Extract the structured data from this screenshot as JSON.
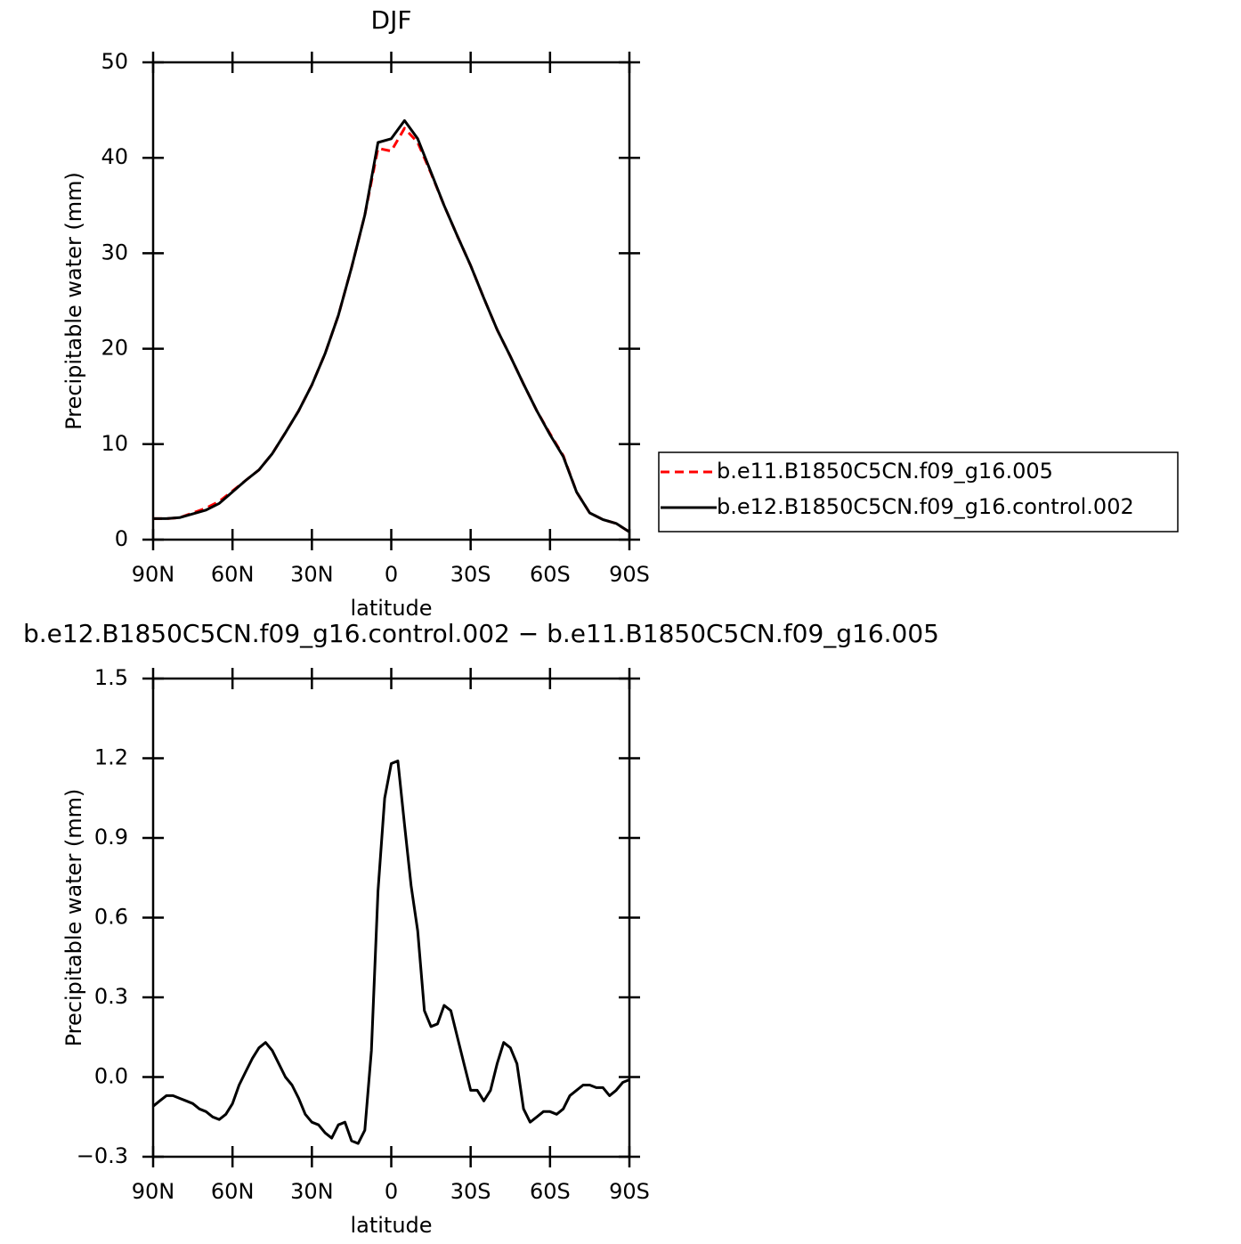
{
  "chart_data": [
    {
      "type": "line",
      "title": "DJF",
      "xlabel": "latitude",
      "ylabel": "Precipitable water (mm)",
      "x": [
        90,
        85,
        80,
        75,
        70,
        65,
        60,
        55,
        50,
        45,
        40,
        35,
        30,
        25,
        20,
        15,
        10,
        5,
        0,
        -5,
        -10,
        -15,
        -20,
        -25,
        -30,
        -35,
        -40,
        -45,
        -50,
        -55,
        -60,
        -65,
        -70,
        -75,
        -80,
        -85,
        -90
      ],
      "series": [
        {
          "name": "b.e11.B1850C5CN.f09_g16.005",
          "color": "#ff0000",
          "style": "dashed",
          "values": [
            2.2,
            2.2,
            2.3,
            2.8,
            3.3,
            4.0,
            5.1,
            6.2,
            7.3,
            9.0,
            11.2,
            13.5,
            16.2,
            19.5,
            23.5,
            28.5,
            34.0,
            41.0,
            40.7,
            43.1,
            41.6,
            38.4,
            35.0,
            31.8,
            28.7,
            25.3,
            22.0,
            19.2,
            16.3,
            13.5,
            11.1,
            8.8,
            5.0,
            2.8,
            2.1,
            1.7,
            0.8
          ]
        },
        {
          "name": "b.e12.B1850C5CN.f09_g16.control.002",
          "color": "#000000",
          "style": "solid",
          "values": [
            2.2,
            2.2,
            2.3,
            2.7,
            3.1,
            3.8,
            5.0,
            6.2,
            7.3,
            9.0,
            11.2,
            13.5,
            16.2,
            19.5,
            23.5,
            28.5,
            34.0,
            41.6,
            42.0,
            43.9,
            42.0,
            38.5,
            35.0,
            31.8,
            28.7,
            25.3,
            22.0,
            19.2,
            16.3,
            13.5,
            11.0,
            8.7,
            5.0,
            2.8,
            2.1,
            1.7,
            0.8
          ]
        }
      ],
      "xlim": [
        90,
        -90
      ],
      "xticks": [
        {
          "value": 90,
          "label": "90N"
        },
        {
          "value": 60,
          "label": "60N"
        },
        {
          "value": 30,
          "label": "30N"
        },
        0,
        {
          "value": -30,
          "label": "30S"
        },
        {
          "value": -60,
          "label": "60S"
        },
        {
          "value": -90,
          "label": "90S"
        }
      ],
      "ylim": [
        0,
        50
      ],
      "yticks": [
        0,
        10,
        20,
        30,
        40,
        50
      ],
      "legend": "right"
    },
    {
      "type": "line",
      "title": "b.e12.B1850C5CN.f09_g16.control.002 − b.e11.B1850C5CN.f09_g16.005",
      "xlabel": "latitude",
      "ylabel": "Precipitable water (mm)",
      "x": [
        90,
        87.5,
        85,
        82.5,
        80,
        77.5,
        75,
        72.5,
        70,
        67.5,
        65,
        62.5,
        60,
        57.5,
        55,
        52.5,
        50,
        47.5,
        45,
        42.5,
        40,
        37.5,
        35,
        32.5,
        30,
        27.5,
        25,
        22.5,
        20,
        17.5,
        15,
        12.5,
        10,
        7.5,
        5,
        2.5,
        0,
        -2.5,
        -5,
        -7.5,
        -10,
        -12.5,
        -15,
        -17.5,
        -20,
        -22.5,
        -25,
        -27.5,
        -30,
        -32.5,
        -35,
        -37.5,
        -40,
        -42.5,
        -45,
        -47.5,
        -50,
        -52.5,
        -55,
        -57.5,
        -60,
        -62.5,
        -65,
        -67.5,
        -70,
        -72.5,
        -75,
        -77.5,
        -80,
        -82.5,
        -85,
        -87.5,
        -90
      ],
      "series": [
        {
          "color": "#000000",
          "style": "solid",
          "values": [
            -0.11,
            -0.09,
            -0.07,
            -0.07,
            -0.08,
            -0.09,
            -0.1,
            -0.12,
            -0.13,
            -0.15,
            -0.16,
            -0.14,
            -0.1,
            -0.03,
            0.02,
            0.07,
            0.11,
            0.13,
            0.1,
            0.05,
            0.0,
            -0.03,
            -0.08,
            -0.14,
            -0.17,
            -0.18,
            -0.21,
            -0.23,
            -0.18,
            -0.17,
            -0.24,
            -0.25,
            -0.2,
            0.1,
            0.7,
            1.05,
            1.18,
            1.19,
            0.95,
            0.72,
            0.55,
            0.25,
            0.19,
            0.2,
            0.27,
            0.25,
            0.15,
            0.05,
            -0.05,
            -0.05,
            -0.09,
            -0.05,
            0.05,
            0.13,
            0.11,
            0.05,
            -0.12,
            -0.17,
            -0.15,
            -0.13,
            -0.13,
            -0.14,
            -0.12,
            -0.07,
            -0.05,
            -0.03,
            -0.03,
            -0.04,
            -0.04,
            -0.07,
            -0.05,
            -0.02,
            -0.01
          ]
        }
      ],
      "xlim": [
        90,
        -90
      ],
      "xticks": [
        {
          "value": 90,
          "label": "90N"
        },
        {
          "value": 60,
          "label": "60N"
        },
        {
          "value": 30,
          "label": "30N"
        },
        0,
        {
          "value": -30,
          "label": "30S"
        },
        {
          "value": -60,
          "label": "60S"
        },
        {
          "value": -90,
          "label": "90S"
        }
      ],
      "ylim": [
        -0.3,
        1.5
      ],
      "yticks": [
        {
          "value": -0.3,
          "label": "−0.3"
        },
        {
          "value": 0,
          "label": "0.0"
        },
        0.3,
        0.6,
        0.9,
        1.2,
        1.5
      ]
    }
  ]
}
